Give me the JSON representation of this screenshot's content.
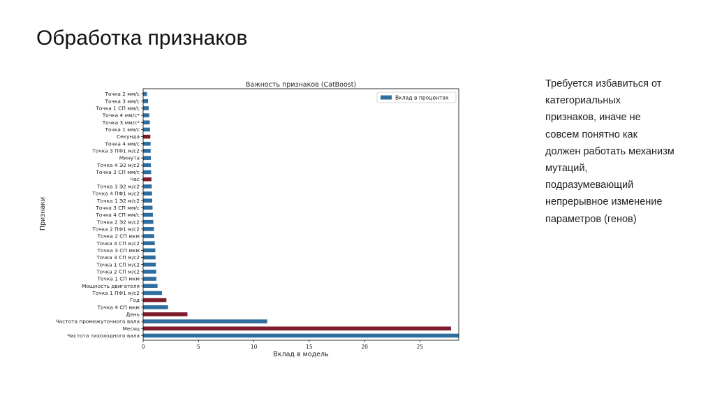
{
  "slide": {
    "title": "Обработка признаков",
    "side_text_lines": [
      "Требуется избавиться от",
      "категориальных",
      "признаков, иначе не",
      "совсем понятно как",
      "должен работать механизм",
      "мутаций,",
      "подразумевающий",
      "непрерывное изменение",
      "параметров (генов)"
    ]
  },
  "colors": {
    "numeric": "#2e6e9e",
    "categorical": "#7d1c2a",
    "axis": "#000000",
    "text": "#222222"
  },
  "chart_data": {
    "type": "bar",
    "orientation": "horizontal",
    "title": "Важность признаков (CatBoost)",
    "xlabel": "Вклад в модель",
    "ylabel": "Признаки",
    "xlim": [
      0,
      28.5
    ],
    "xticks": [
      0,
      5,
      10,
      15,
      20,
      25
    ],
    "grid": false,
    "legend": {
      "position": "top-right",
      "entries": [
        "Вклад в процентах"
      ]
    },
    "categories": [
      "Точка 2 мм/с",
      "Точка 3 мм/с",
      "Точка 1 СП мм/с",
      "Точка 4 мм/с*",
      "Точка 3 мм/с*",
      "Точка 1 мм/с",
      "Секунда",
      "Точка 4 мм/с",
      "Точка 3 ПФ1 м/с2",
      "Минута",
      "Точка 4 Э2 м/с2",
      "Точка 2 СП мм/с",
      "Час",
      "Точка 3 Э2 м/с2",
      "Точка 4 ПФ1 м/с2",
      "Точка 1 Э2 м/с2",
      "Точка 3 СП мм/с",
      "Точка 4 СП мм/с",
      "Точка 2 Э2 м/с2",
      "Точка 2 ПФ1 м/с2",
      "Точка 2 СП мкм",
      "Точка 4 СП м/с2",
      "Точка 3 СП мкм",
      "Точка 3 СП м/с2",
      "Точка 1 СП м/с2",
      "Точка 2 СП м/с2",
      "Точка 1 СП мкм",
      "Мощность двигателя",
      "Точка 1 ПФ1 м/с2",
      "Год",
      "Точка 4 СП мкм",
      "День",
      "Частота промежуточного вала",
      "Месяц",
      "Частота тихоходного вала"
    ],
    "values": [
      0.35,
      0.45,
      0.5,
      0.55,
      0.6,
      0.62,
      0.65,
      0.67,
      0.68,
      0.7,
      0.7,
      0.72,
      0.75,
      0.78,
      0.8,
      0.82,
      0.85,
      0.88,
      0.92,
      0.98,
      1.0,
      1.05,
      1.1,
      1.12,
      1.15,
      1.18,
      1.2,
      1.3,
      1.7,
      2.1,
      2.25,
      4.0,
      11.2,
      27.8,
      28.5
    ],
    "categorical_flags": [
      false,
      false,
      false,
      false,
      false,
      false,
      true,
      false,
      false,
      false,
      false,
      false,
      true,
      false,
      false,
      false,
      false,
      false,
      false,
      false,
      false,
      false,
      false,
      false,
      false,
      false,
      false,
      false,
      false,
      true,
      false,
      true,
      false,
      true,
      false
    ]
  }
}
